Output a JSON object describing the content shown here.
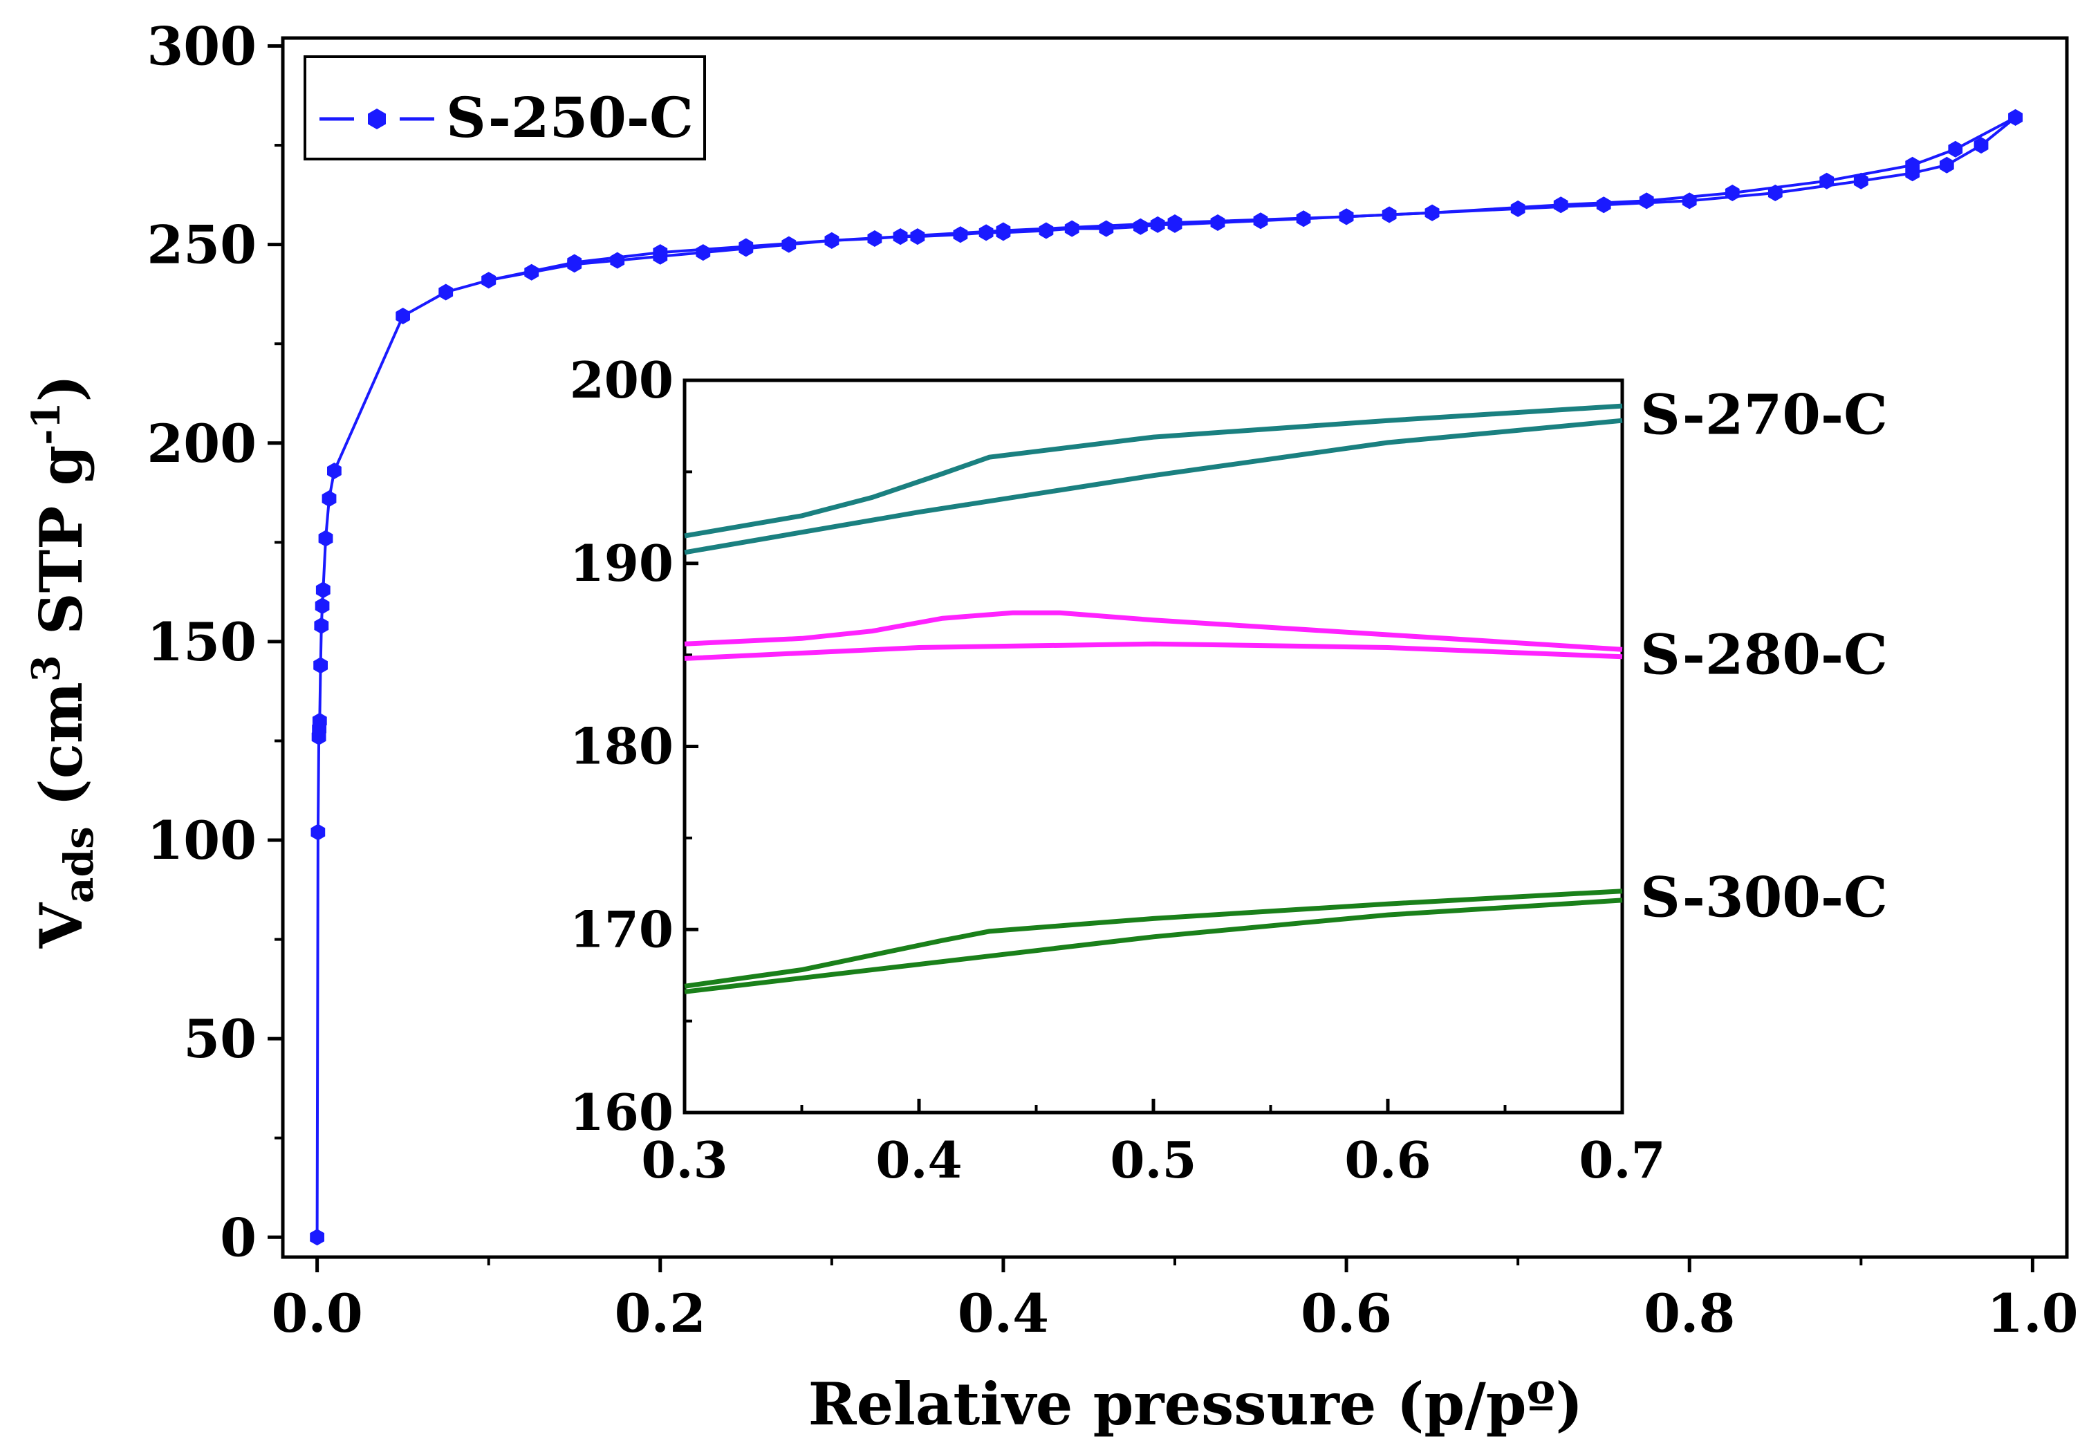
{
  "chart_data": [
    {
      "id": "main",
      "type": "line",
      "xlabel": "Relative pressure (p/pº)",
      "ylabel": {
        "base": "V",
        "sub": "ads",
        "paren_open": " (cm",
        "sup1": "3",
        "mid": " STP g",
        "sup2": "-1",
        "paren_close": ")"
      },
      "xlim": [
        -0.02,
        1.02
      ],
      "ylim": [
        -5,
        302
      ],
      "xticks": [
        0.0,
        0.2,
        0.4,
        0.6,
        0.8,
        1.0
      ],
      "xtick_labels": [
        "0.0",
        "0.2",
        "0.4",
        "0.6",
        "0.8",
        "1.0"
      ],
      "yticks": [
        0,
        50,
        100,
        150,
        200,
        250,
        300
      ],
      "ytick_labels": [
        "0",
        "50",
        "100",
        "150",
        "200",
        "250",
        "300"
      ],
      "legend": {
        "position": "top-left",
        "label": "S-250-C"
      },
      "series": [
        {
          "name": "S-250-C",
          "color": "#1a1aff",
          "marker": "hexagon",
          "adsorption": {
            "x": [
              0.0,
              0.0005,
              0.001,
              0.0012,
              0.0015,
              0.002,
              0.0025,
              0.003,
              0.0035,
              0.005,
              0.007,
              0.01,
              0.05,
              0.075,
              0.1,
              0.125,
              0.15,
              0.175,
              0.2,
              0.225,
              0.25,
              0.275,
              0.3,
              0.325,
              0.34,
              0.35,
              0.375,
              0.39,
              0.4,
              0.425,
              0.44,
              0.46,
              0.48,
              0.49,
              0.5,
              0.525,
              0.55,
              0.575,
              0.6,
              0.625,
              0.65,
              0.7,
              0.75,
              0.8,
              0.85,
              0.9,
              0.93,
              0.95,
              0.97,
              0.99
            ],
            "y": [
              0,
              102,
              126,
              128,
              130,
              144,
              154,
              159,
              163,
              176,
              186,
              193,
              232,
              238,
              241,
              243,
              245,
              246,
              247,
              248,
              249,
              250,
              251,
              251.5,
              252,
              252,
              252.5,
              253,
              253,
              253.5,
              254,
              254,
              254.5,
              255,
              255,
              255.5,
              256,
              256.5,
              257,
              257.5,
              258,
              259,
              260,
              261,
              263,
              266,
              268,
              270,
              275,
              282
            ]
          },
          "desorption": {
            "x": [
              0.99,
              0.955,
              0.93,
              0.88,
              0.825,
              0.775,
              0.725,
              0.65,
              0.6,
              0.5,
              0.4,
              0.34,
              0.3,
              0.25,
              0.2,
              0.15,
              0.1
            ],
            "y": [
              282,
              274,
              270,
              266,
              263,
              261,
              260,
              258,
              257,
              255.5,
              253.5,
              252,
              251,
              249.5,
              248,
              245.5,
              241
            ]
          }
        }
      ]
    },
    {
      "id": "inset",
      "type": "line",
      "xlim": [
        0.3,
        0.7
      ],
      "ylim": [
        160,
        200
      ],
      "xticks": [
        0.3,
        0.4,
        0.5,
        0.6,
        0.7
      ],
      "xtick_labels": [
        "0.3",
        "0.4",
        "0.5",
        "0.6",
        "0.7"
      ],
      "yticks": [
        160,
        170,
        180,
        190,
        200
      ],
      "ytick_labels": [
        "160",
        "170",
        "180",
        "190",
        "200"
      ],
      "series": [
        {
          "name": "S-270-C",
          "color": "#1a8080",
          "adsorption": {
            "x": [
              0.3,
              0.4,
              0.5,
              0.6,
              0.7
            ],
            "y": [
              190.6,
              192.8,
              194.8,
              196.6,
              197.8
            ]
          },
          "desorption": {
            "x": [
              0.3,
              0.35,
              0.38,
              0.41,
              0.43,
              0.5,
              0.6,
              0.7
            ],
            "y": [
              191.5,
              192.6,
              193.6,
              194.9,
              195.8,
              196.9,
              197.8,
              198.6
            ]
          }
        },
        {
          "name": "S-280-C",
          "color": "#ff22ff",
          "adsorption": {
            "x": [
              0.3,
              0.4,
              0.5,
              0.6,
              0.7
            ],
            "y": [
              184.8,
              185.4,
              185.6,
              185.4,
              184.9
            ]
          },
          "desorption": {
            "x": [
              0.3,
              0.35,
              0.38,
              0.41,
              0.44,
              0.46,
              0.5,
              0.6,
              0.7
            ],
            "y": [
              185.6,
              185.9,
              186.3,
              187.0,
              187.3,
              187.3,
              186.9,
              186.1,
              185.3
            ]
          }
        },
        {
          "name": "S-300-C",
          "color": "#1a801a",
          "adsorption": {
            "x": [
              0.3,
              0.4,
              0.5,
              0.6,
              0.7
            ],
            "y": [
              166.6,
              168.1,
              169.6,
              170.8,
              171.6
            ]
          },
          "desorption": {
            "x": [
              0.3,
              0.35,
              0.38,
              0.41,
              0.43,
              0.47,
              0.5,
              0.6,
              0.7
            ],
            "y": [
              166.9,
              167.8,
              168.6,
              169.4,
              169.9,
              170.3,
              170.6,
              171.4,
              172.1
            ]
          }
        }
      ]
    }
  ]
}
